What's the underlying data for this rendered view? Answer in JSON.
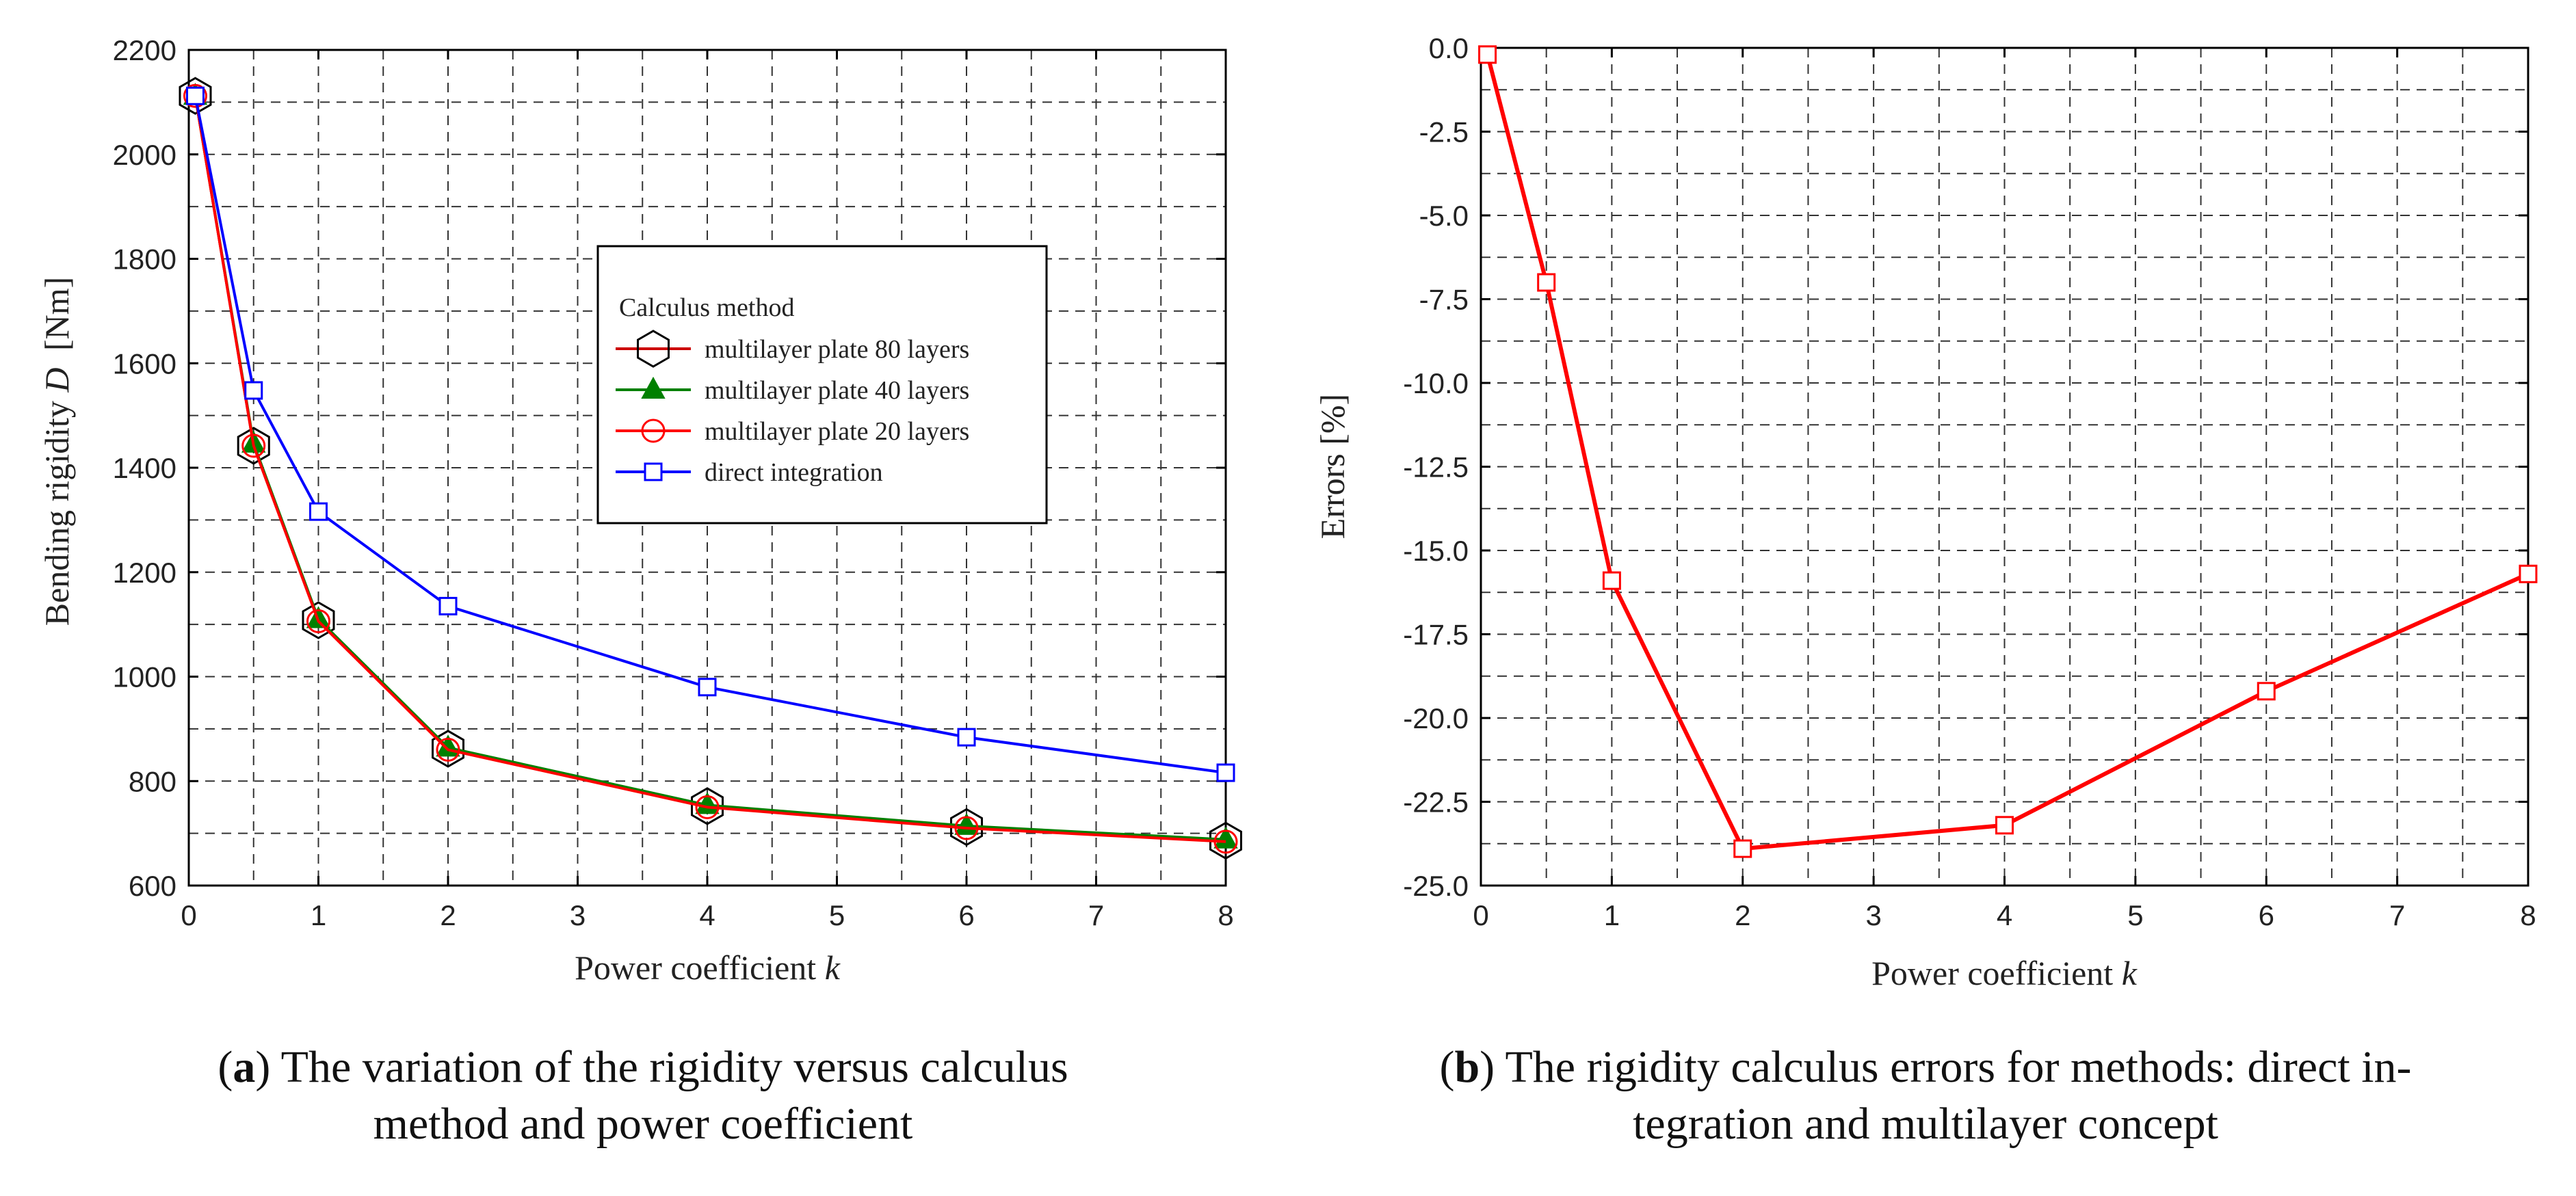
{
  "chart_data": [
    {
      "type": "line",
      "ylabel_prefix": "Bending rigidity",
      "ylabel_var": "D",
      "ylabel_unit": "[Nm]",
      "xlabel_prefix": "Power coefficient",
      "xlabel_var": "k",
      "xlim": [
        0,
        8
      ],
      "ylim": [
        600,
        2200
      ],
      "xticks": [
        0,
        1,
        2,
        3,
        4,
        5,
        6,
        7,
        8
      ],
      "yticks": [
        600,
        800,
        1000,
        1200,
        1400,
        1600,
        1800,
        2000,
        2200
      ],
      "grid": true,
      "legend_title": "Calculus method",
      "legend_position": "center-right",
      "series": [
        {
          "name": "multilayer plate 80 layers",
          "color": "#000000",
          "line_color": "#cc0000",
          "marker": "hexagon",
          "x": [
            0.05,
            0.5,
            1,
            2,
            4,
            6,
            8
          ],
          "values": [
            2112,
            1442,
            1108,
            862,
            752,
            712,
            686
          ]
        },
        {
          "name": "multilayer plate 40 layers",
          "color": "#008000",
          "marker": "triangle",
          "x": [
            0.05,
            0.5,
            1,
            2,
            4,
            6,
            8
          ],
          "values": [
            2112,
            1446,
            1110,
            864,
            754,
            714,
            688
          ]
        },
        {
          "name": "multilayer plate 20 layers",
          "color": "#ff0000",
          "marker": "circle",
          "x": [
            0.05,
            0.5,
            1,
            2,
            4,
            6,
            8
          ],
          "values": [
            2112,
            1442,
            1106,
            860,
            750,
            710,
            684
          ]
        },
        {
          "name": "direct integration",
          "color": "#0000ff",
          "marker": "square",
          "x": [
            0.05,
            0.5,
            1,
            2,
            4,
            6,
            8
          ],
          "values": [
            2112,
            1548,
            1316,
            1135,
            980,
            884,
            816
          ]
        }
      ]
    },
    {
      "type": "line",
      "ylabel": "Errors [%]",
      "xlabel_prefix": "Power coefficient",
      "xlabel_var": "k",
      "xlim": [
        0,
        8
      ],
      "ylim": [
        -25,
        0
      ],
      "xticks": [
        0,
        1,
        2,
        3,
        4,
        5,
        6,
        7,
        8
      ],
      "yticks": [
        0.0,
        -2.5,
        -5.0,
        -7.5,
        -10.0,
        -12.5,
        -15.0,
        -17.5,
        -20.0,
        -22.5,
        -25.0
      ],
      "grid": true,
      "series": [
        {
          "name": "errors",
          "color": "#ff0000",
          "marker": "square",
          "x": [
            0.05,
            0.5,
            1,
            2,
            4,
            6,
            8
          ],
          "values": [
            -0.2,
            -7.0,
            -15.9,
            -23.9,
            -23.2,
            -19.2,
            -15.7
          ]
        }
      ]
    }
  ],
  "captions": {
    "a_label": "a",
    "a_text": ") The variation of the rigidity versus calculus",
    "a_text2": "method and power coefficient",
    "b_label": "b",
    "b_text": ") The rigidity calculus errors for methods: direct in-",
    "b_text2": "tegration and multilayer concept"
  }
}
